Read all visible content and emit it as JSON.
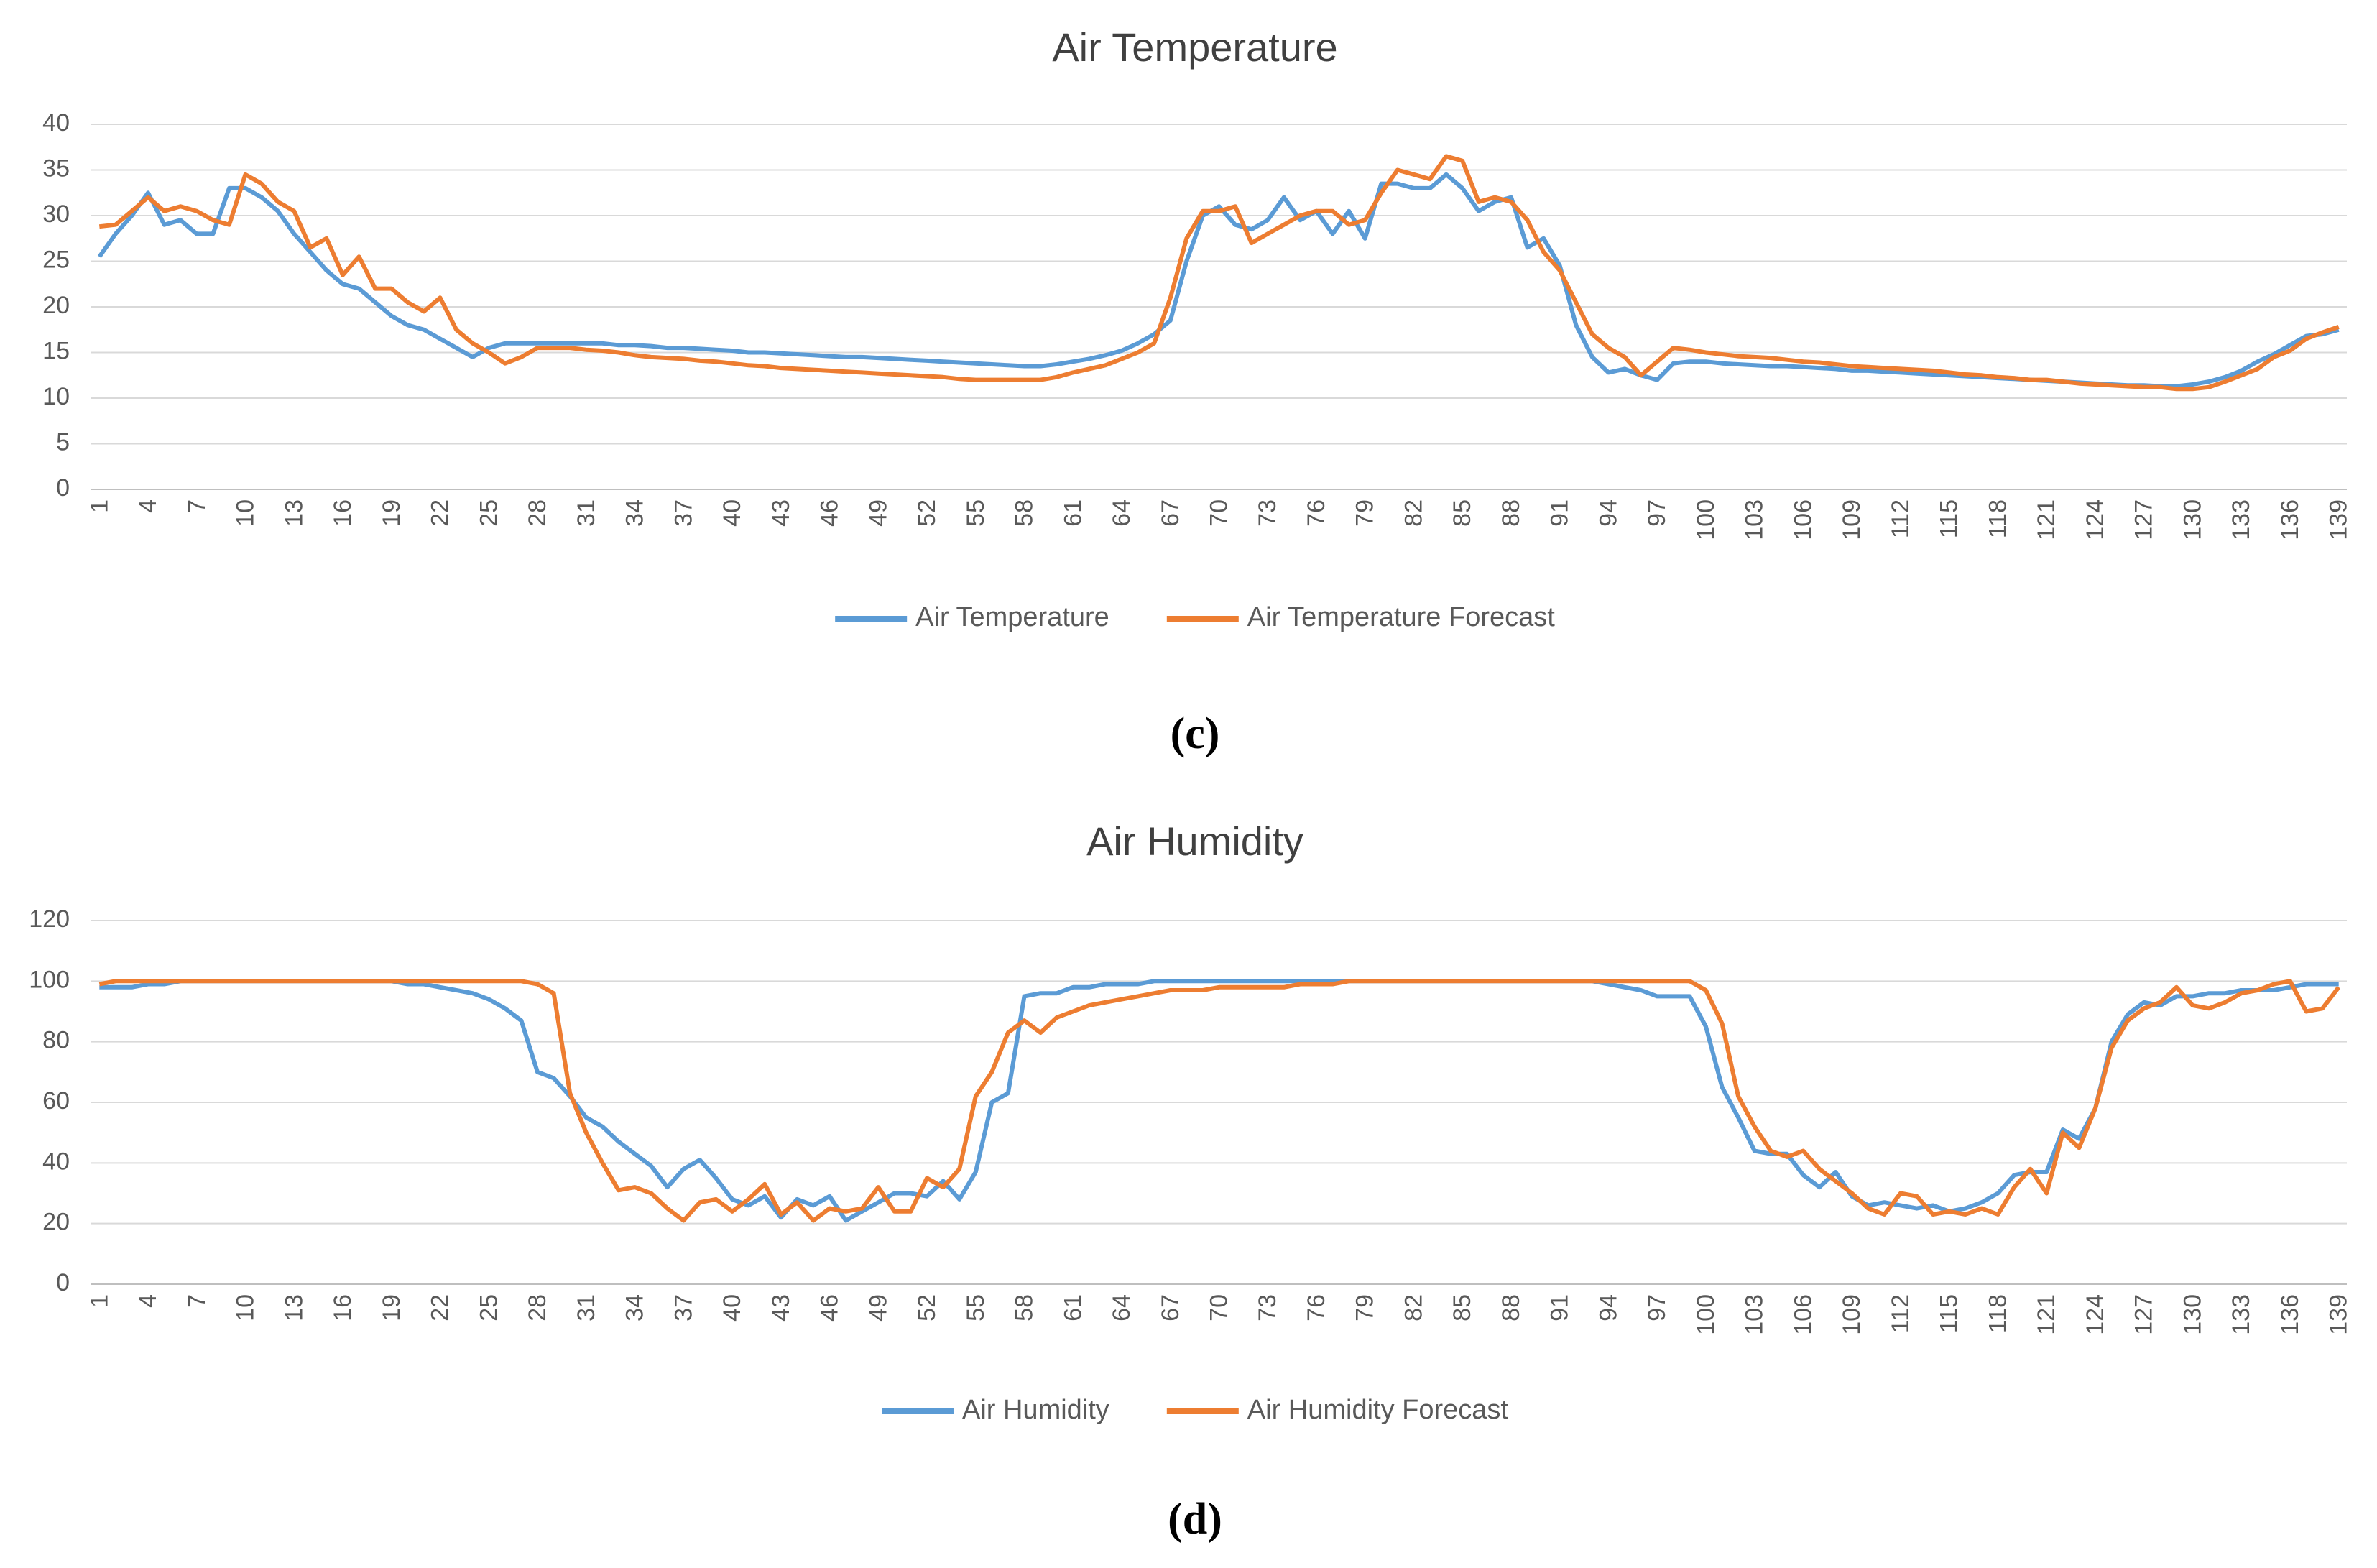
{
  "chart_data": [
    {
      "type": "line",
      "title": "Air Temperature",
      "caption": "(c)",
      "categories": [
        1,
        null,
        null,
        4,
        null,
        null,
        7,
        null,
        null,
        10,
        null,
        null,
        13,
        null,
        null,
        16,
        null,
        null,
        19,
        null,
        null,
        22,
        null,
        null,
        25,
        null,
        null,
        28,
        null,
        null,
        31,
        null,
        null,
        34,
        null,
        null,
        37,
        null,
        null,
        40,
        null,
        null,
        43,
        null,
        null,
        46,
        null,
        null,
        49,
        null,
        null,
        52,
        null,
        null,
        55,
        null,
        null,
        58,
        null,
        null,
        61,
        null,
        null,
        64,
        null,
        null,
        67,
        null,
        null,
        70,
        null,
        null,
        73,
        null,
        null,
        76,
        null,
        null,
        79,
        null,
        null,
        82,
        null,
        null,
        85,
        null,
        null,
        88,
        null,
        null,
        91,
        null,
        null,
        94,
        null,
        null,
        97,
        null,
        null,
        100,
        null,
        null,
        103,
        null,
        null,
        106,
        null,
        null,
        109,
        null,
        null,
        112,
        null,
        null,
        115,
        null,
        null,
        118,
        null,
        null,
        121,
        null,
        null,
        124,
        null,
        null,
        127,
        null,
        null,
        130,
        null,
        null,
        133,
        null,
        null,
        136,
        null,
        null,
        139
      ],
      "ylim": [
        0,
        40
      ],
      "yticks": [
        0,
        5,
        10,
        15,
        20,
        25,
        30,
        35,
        40
      ],
      "grid": true,
      "legend": "bottom",
      "series": [
        {
          "name": "Air Temperature",
          "color": "#5b9bd5",
          "values": [
            25.5,
            28,
            30,
            32.5,
            29,
            29.5,
            28,
            28,
            33,
            33,
            32,
            30.5,
            28,
            26,
            24,
            22.5,
            22,
            20.5,
            19,
            18,
            17.5,
            16.5,
            15.5,
            14.5,
            15.5,
            16,
            16,
            16,
            16,
            16,
            16,
            16,
            15.8,
            15.8,
            15.7,
            15.5,
            15.5,
            15.4,
            15.3,
            15.2,
            15,
            15,
            14.9,
            14.8,
            14.7,
            14.6,
            14.5,
            14.5,
            14.4,
            14.3,
            14.2,
            14.1,
            14,
            13.9,
            13.8,
            13.7,
            13.6,
            13.5,
            13.5,
            13.7,
            14,
            14.3,
            14.7,
            15.2,
            16,
            17,
            18.5,
            25,
            30,
            31,
            29,
            28.5,
            29.5,
            32,
            29.5,
            30.5,
            28,
            30.5,
            27.5,
            33.5,
            33.5,
            33,
            33,
            34.5,
            33,
            30.5,
            31.5,
            32,
            26.5,
            27.5,
            24.5,
            18,
            14.5,
            12.8,
            13.2,
            12.5,
            12,
            13.8,
            14,
            14,
            13.8,
            13.7,
            13.6,
            13.5,
            13.5,
            13.4,
            13.3,
            13.2,
            13,
            13,
            12.9,
            12.8,
            12.7,
            12.6,
            12.5,
            12.4,
            12.3,
            12.2,
            12.1,
            12,
            11.9,
            11.8,
            11.7,
            11.6,
            11.5,
            11.4,
            11.4,
            11.3,
            11.3,
            11.5,
            11.8,
            12.3,
            13,
            14,
            14.8,
            15.8,
            16.8,
            17,
            17.5
          ]
        },
        {
          "name": "Air Temperature Forecast",
          "color": "#ed7d31",
          "values": [
            28.8,
            29,
            30.5,
            32,
            30.5,
            31,
            30.5,
            29.5,
            29,
            34.5,
            33.5,
            31.5,
            30.5,
            26.5,
            27.5,
            23.5,
            25.5,
            22,
            22,
            20.5,
            19.5,
            21,
            17.5,
            16,
            15,
            13.8,
            14.5,
            15.5,
            15.5,
            15.5,
            15.3,
            15.2,
            15,
            14.7,
            14.5,
            14.4,
            14.3,
            14.1,
            14,
            13.8,
            13.6,
            13.5,
            13.3,
            13.2,
            13.1,
            13,
            12.9,
            12.8,
            12.7,
            12.6,
            12.5,
            12.4,
            12.3,
            12.1,
            12,
            12,
            12,
            12,
            12,
            12.3,
            12.8,
            13.2,
            13.6,
            14.3,
            15,
            16,
            21,
            27.5,
            30.5,
            30.5,
            31,
            27,
            28,
            29,
            30,
            30.5,
            30.5,
            29,
            29.5,
            32.5,
            35,
            34.5,
            34,
            36.5,
            36,
            31.5,
            32,
            31.5,
            29.5,
            26,
            24,
            20.5,
            17,
            15.5,
            14.5,
            12.5,
            14,
            15.5,
            15.3,
            15,
            14.8,
            14.6,
            14.5,
            14.4,
            14.2,
            14,
            13.9,
            13.7,
            13.5,
            13.4,
            13.3,
            13.2,
            13.1,
            13,
            12.8,
            12.6,
            12.5,
            12.3,
            12.2,
            12,
            12,
            11.8,
            11.6,
            11.5,
            11.4,
            11.3,
            11.2,
            11.2,
            11,
            11,
            11.2,
            11.8,
            12.5,
            13.2,
            14.5,
            15.2,
            16.5,
            17.2,
            17.8
          ]
        }
      ]
    },
    {
      "type": "line",
      "title": "Air Humidity",
      "caption": "(d)",
      "categories": [
        1,
        null,
        null,
        4,
        null,
        null,
        7,
        null,
        null,
        10,
        null,
        null,
        13,
        null,
        null,
        16,
        null,
        null,
        19,
        null,
        null,
        22,
        null,
        null,
        25,
        null,
        null,
        28,
        null,
        null,
        31,
        null,
        null,
        34,
        null,
        null,
        37,
        null,
        null,
        40,
        null,
        null,
        43,
        null,
        null,
        46,
        null,
        null,
        49,
        null,
        null,
        52,
        null,
        null,
        55,
        null,
        null,
        58,
        null,
        null,
        61,
        null,
        null,
        64,
        null,
        null,
        67,
        null,
        null,
        70,
        null,
        null,
        73,
        null,
        null,
        76,
        null,
        null,
        79,
        null,
        null,
        82,
        null,
        null,
        85,
        null,
        null,
        88,
        null,
        null,
        91,
        null,
        null,
        94,
        null,
        null,
        97,
        null,
        null,
        100,
        null,
        null,
        103,
        null,
        null,
        106,
        null,
        null,
        109,
        null,
        null,
        112,
        null,
        null,
        115,
        null,
        null,
        118,
        null,
        null,
        121,
        null,
        null,
        124,
        null,
        null,
        127,
        null,
        null,
        130,
        null,
        null,
        133,
        null,
        null,
        136,
        null,
        null,
        139
      ],
      "ylim": [
        0,
        120
      ],
      "yticks": [
        0,
        20,
        40,
        60,
        80,
        100,
        120
      ],
      "grid": true,
      "legend": "bottom",
      "series": [
        {
          "name": "Air Humidity",
          "color": "#5b9bd5",
          "values": [
            98,
            98,
            98,
            99,
            99,
            100,
            100,
            100,
            100,
            100,
            100,
            100,
            100,
            100,
            100,
            100,
            100,
            100,
            100,
            99,
            99,
            98,
            97,
            96,
            94,
            91,
            87,
            70,
            68,
            62,
            55,
            52,
            47,
            43,
            39,
            32,
            38,
            41,
            35,
            28,
            26,
            29,
            22,
            28,
            26,
            29,
            21,
            24,
            27,
            30,
            30,
            29,
            34,
            28,
            37,
            60,
            63,
            95,
            96,
            96,
            98,
            98,
            99,
            99,
            99,
            100,
            100,
            100,
            100,
            100,
            100,
            100,
            100,
            100,
            100,
            100,
            100,
            100,
            100,
            100,
            100,
            100,
            100,
            100,
            100,
            100,
            100,
            100,
            100,
            100,
            100,
            100,
            100,
            99,
            98,
            97,
            95,
            95,
            95,
            85,
            65,
            55,
            44,
            43,
            43,
            36,
            32,
            37,
            29,
            26,
            27,
            26,
            25,
            26,
            24,
            25,
            27,
            30,
            36,
            37,
            37,
            51,
            48,
            58,
            80,
            89,
            93,
            92,
            95,
            95,
            96,
            96,
            97,
            97,
            97,
            98,
            99,
            99,
            99
          ]
        },
        {
          "name": "Air Humidity Forecast",
          "color": "#ed7d31",
          "values": [
            99,
            100,
            100,
            100,
            100,
            100,
            100,
            100,
            100,
            100,
            100,
            100,
            100,
            100,
            100,
            100,
            100,
            100,
            100,
            100,
            100,
            100,
            100,
            100,
            100,
            100,
            100,
            99,
            96,
            63,
            50,
            40,
            31,
            32,
            30,
            25,
            21,
            27,
            28,
            24,
            28,
            33,
            23,
            27,
            21,
            25,
            24,
            25,
            32,
            24,
            24,
            35,
            32,
            38,
            62,
            70,
            83,
            87,
            83,
            88,
            90,
            92,
            93,
            94,
            95,
            96,
            97,
            97,
            97,
            98,
            98,
            98,
            98,
            98,
            99,
            99,
            99,
            100,
            100,
            100,
            100,
            100,
            100,
            100,
            100,
            100,
            100,
            100,
            100,
            100,
            100,
            100,
            100,
            100,
            100,
            100,
            100,
            100,
            100,
            97,
            86,
            62,
            52,
            44,
            42,
            44,
            38,
            34,
            30,
            25,
            23,
            30,
            29,
            23,
            24,
            23,
            25,
            23,
            32,
            38,
            30,
            50,
            45,
            58,
            78,
            87,
            91,
            93,
            98,
            92,
            91,
            93,
            96,
            97,
            99,
            100,
            90,
            91,
            98
          ]
        }
      ]
    }
  ]
}
